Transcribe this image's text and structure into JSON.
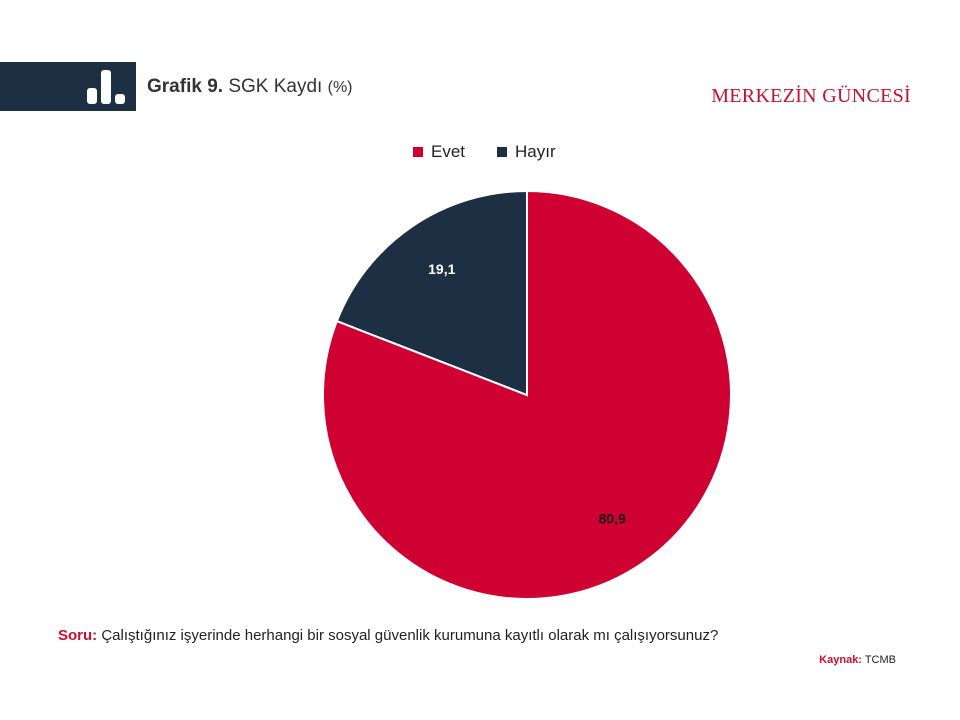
{
  "header": {
    "title_prefix": "Grafik 9.",
    "title_text": "SGK Kaydı",
    "title_unit": "(%)",
    "brand": "MERKEZİN GÜNCESİ",
    "header_icon": "bar-chart-icon"
  },
  "colors": {
    "header_bar": "#1d2f43",
    "accent_red": "#c8102e",
    "evet": "#cf0032",
    "hayir": "#1d2f43"
  },
  "chart_data": {
    "type": "pie",
    "title": "SGK Kaydı (%)",
    "legend_position": "top",
    "slices": [
      {
        "name": "Evet",
        "value": 80.9,
        "label": "80,9",
        "color": "#cf0032"
      },
      {
        "name": "Hayır",
        "value": 19.1,
        "label": "19,1",
        "color": "#1d2f43"
      }
    ]
  },
  "footer": {
    "question_label": "Soru:",
    "question_text": "Çalıştığınız işyerinde herhangi bir sosyal güvenlik kurumuna kayıtlı olarak mı çalışıyorsunuz?",
    "source_label": "Kaynak:",
    "source_text": "TCMB"
  }
}
